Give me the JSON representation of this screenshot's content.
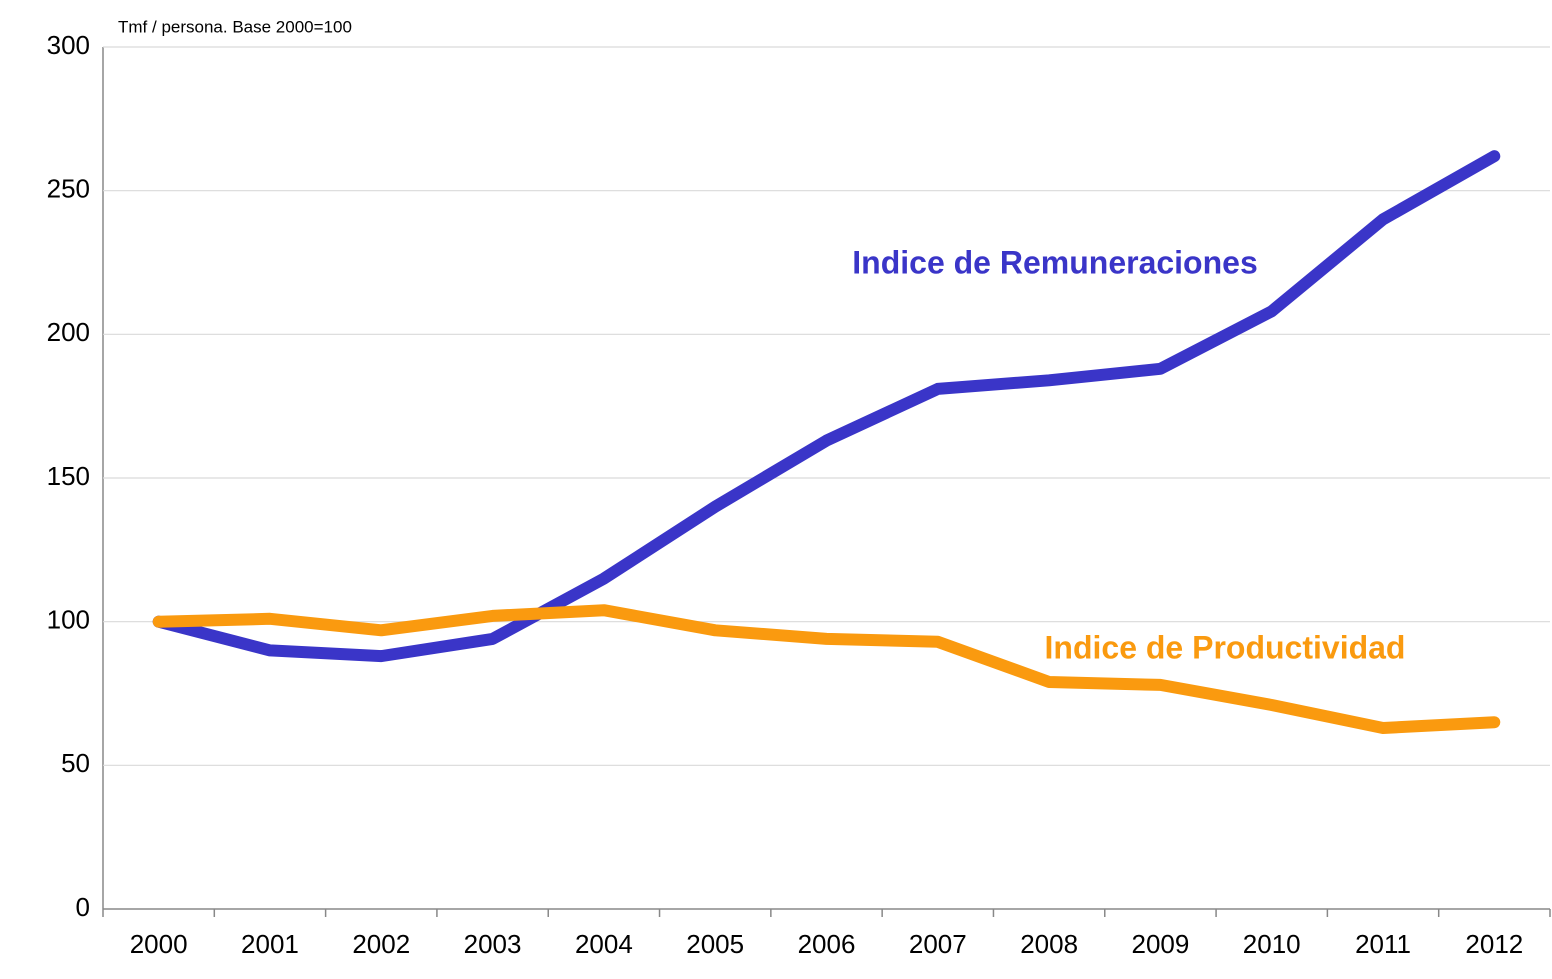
{
  "chart_data": {
    "type": "line",
    "subtitle": "Tmf / persona. Base 2000=100",
    "categories": [
      "2000",
      "2001",
      "2002",
      "2003",
      "2004",
      "2005",
      "2006",
      "2007",
      "2008",
      "2009",
      "2010",
      "2011",
      "2012"
    ],
    "series": [
      {
        "name": "Indice de Remuneraciones",
        "color": "#3a35c8",
        "values": [
          100,
          90,
          88,
          94,
          115,
          140,
          163,
          181,
          184,
          188,
          208,
          240,
          262
        ]
      },
      {
        "name": "Indice de Productividad",
        "color": "#fa9a0f",
        "values": [
          100,
          101,
          97,
          102,
          104,
          97,
          94,
          93,
          79,
          78,
          71,
          63,
          65
        ]
      }
    ],
    "ylim": [
      0,
      300
    ],
    "yticks": [
      0,
      50,
      100,
      150,
      200,
      250,
      300
    ],
    "grid": true
  }
}
